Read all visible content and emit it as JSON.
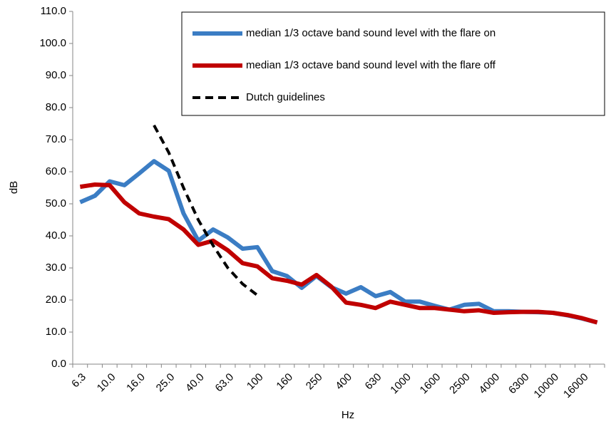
{
  "chart_data": {
    "type": "line",
    "xlabel": "Hz",
    "ylabel": "dB",
    "categories": [
      "6.3",
      null,
      "10.0",
      null,
      "16.0",
      null,
      "25.0",
      null,
      "40.0",
      null,
      "63.0",
      null,
      "100",
      null,
      "160",
      null,
      "250",
      null,
      "400",
      null,
      "630",
      null,
      "1000",
      null,
      "1600",
      null,
      "2500",
      null,
      "4000",
      null,
      "6300",
      null,
      "10000",
      null,
      "16000",
      null
    ],
    "series": [
      {
        "name": "median 1/3 octave band sound level with the flare on",
        "color": "#3b7dc4",
        "dash": false,
        "values": [
          50.5,
          52.5,
          57,
          55.8,
          59.5,
          63.3,
          60.3,
          47,
          38.5,
          42,
          39.5,
          36,
          36.5,
          29,
          27.5,
          23.8,
          27.5,
          24,
          22,
          24,
          21.2,
          22.5,
          19.5,
          19.5,
          18.2,
          17,
          18.5,
          18.8,
          16.5,
          16.5,
          16.3,
          16.2,
          16,
          15.2,
          14.2,
          13
        ]
      },
      {
        "name": "median 1/3 octave band sound level with the flare off",
        "color": "#c00000",
        "dash": false,
        "values": [
          55.3,
          56,
          55.8,
          50.5,
          47,
          46,
          45.2,
          42,
          37.2,
          38.5,
          35.5,
          31.5,
          30.5,
          26.8,
          26,
          24.8,
          27.8,
          24.2,
          19.2,
          18.5,
          17.5,
          19.5,
          18.5,
          17.5,
          17.5,
          17,
          16.5,
          16.8,
          16,
          16.2,
          16.3,
          16.3,
          16,
          15.3,
          14.3,
          13
        ]
      },
      {
        "name": "Dutch guidelines",
        "color": "#000000",
        "dash": true,
        "values": [
          null,
          null,
          null,
          null,
          null,
          74.5,
          66,
          55,
          45,
          37,
          30,
          25,
          21.5,
          null,
          null,
          null,
          null,
          null,
          null,
          null,
          null,
          null,
          null,
          null,
          null,
          null,
          null,
          null,
          null,
          null,
          null,
          null,
          null,
          null,
          null,
          null
        ]
      }
    ],
    "ylim": [
      0,
      110
    ],
    "yticks": [
      {
        "value": 0,
        "label": "0.0"
      },
      {
        "value": 10,
        "label": "10.0"
      },
      {
        "value": 20,
        "label": "20.0"
      },
      {
        "value": 30,
        "label": "30.0"
      },
      {
        "value": 40,
        "label": "40.0"
      },
      {
        "value": 50,
        "label": "50.0"
      },
      {
        "value": 60,
        "label": "60.0"
      },
      {
        "value": 70,
        "label": "70.0"
      },
      {
        "value": 80,
        "label": "80.0"
      },
      {
        "value": 90,
        "label": "90.0"
      },
      {
        "value": 100,
        "label": "100.0"
      },
      {
        "value": 110,
        "label": "110.0"
      }
    ],
    "grid": false,
    "legend": "upper right"
  }
}
